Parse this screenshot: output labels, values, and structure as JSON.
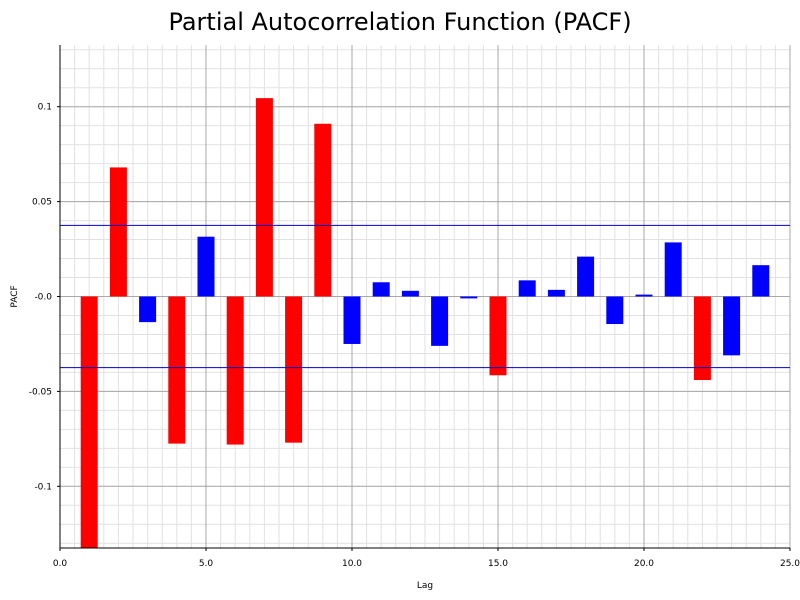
{
  "chart_data": {
    "type": "bar",
    "title": "Partial Autocorrelation Function (PACF)",
    "xlabel": "Lag",
    "ylabel": "PACF",
    "xlim": [
      0,
      25
    ],
    "ylim": [
      -0.1325,
      0.1325
    ],
    "x_ticks": [
      0,
      5,
      10,
      15,
      20,
      25
    ],
    "x_tick_labels": [
      "0.0",
      "5.0",
      "10.0",
      "15.0",
      "20.0",
      "25.0"
    ],
    "y_ticks": [
      0.1,
      0.05,
      0,
      -0.05,
      -0.1
    ],
    "y_tick_labels": [
      "0.1",
      "0.05",
      "-0.0",
      "-0.05",
      "-0.1"
    ],
    "grid": true,
    "confidence_band": 0.0375,
    "colors": {
      "significant": "#ff0000",
      "not_significant": "#0000ff",
      "band": "#0000cc"
    },
    "lags": [
      1,
      2,
      3,
      4,
      5,
      6,
      7,
      8,
      9,
      10,
      11,
      12,
      13,
      14,
      15,
      16,
      17,
      18,
      19,
      20,
      21,
      22,
      23,
      24
    ],
    "values": [
      -0.1325,
      0.068,
      -0.0135,
      -0.0775,
      0.0315,
      -0.078,
      0.1045,
      -0.077,
      0.091,
      -0.025,
      0.0075,
      0.003,
      -0.026,
      -0.001,
      -0.0415,
      0.0085,
      0.0035,
      0.021,
      -0.0145,
      0.001,
      0.0285,
      -0.044,
      -0.031,
      0.0165
    ]
  }
}
